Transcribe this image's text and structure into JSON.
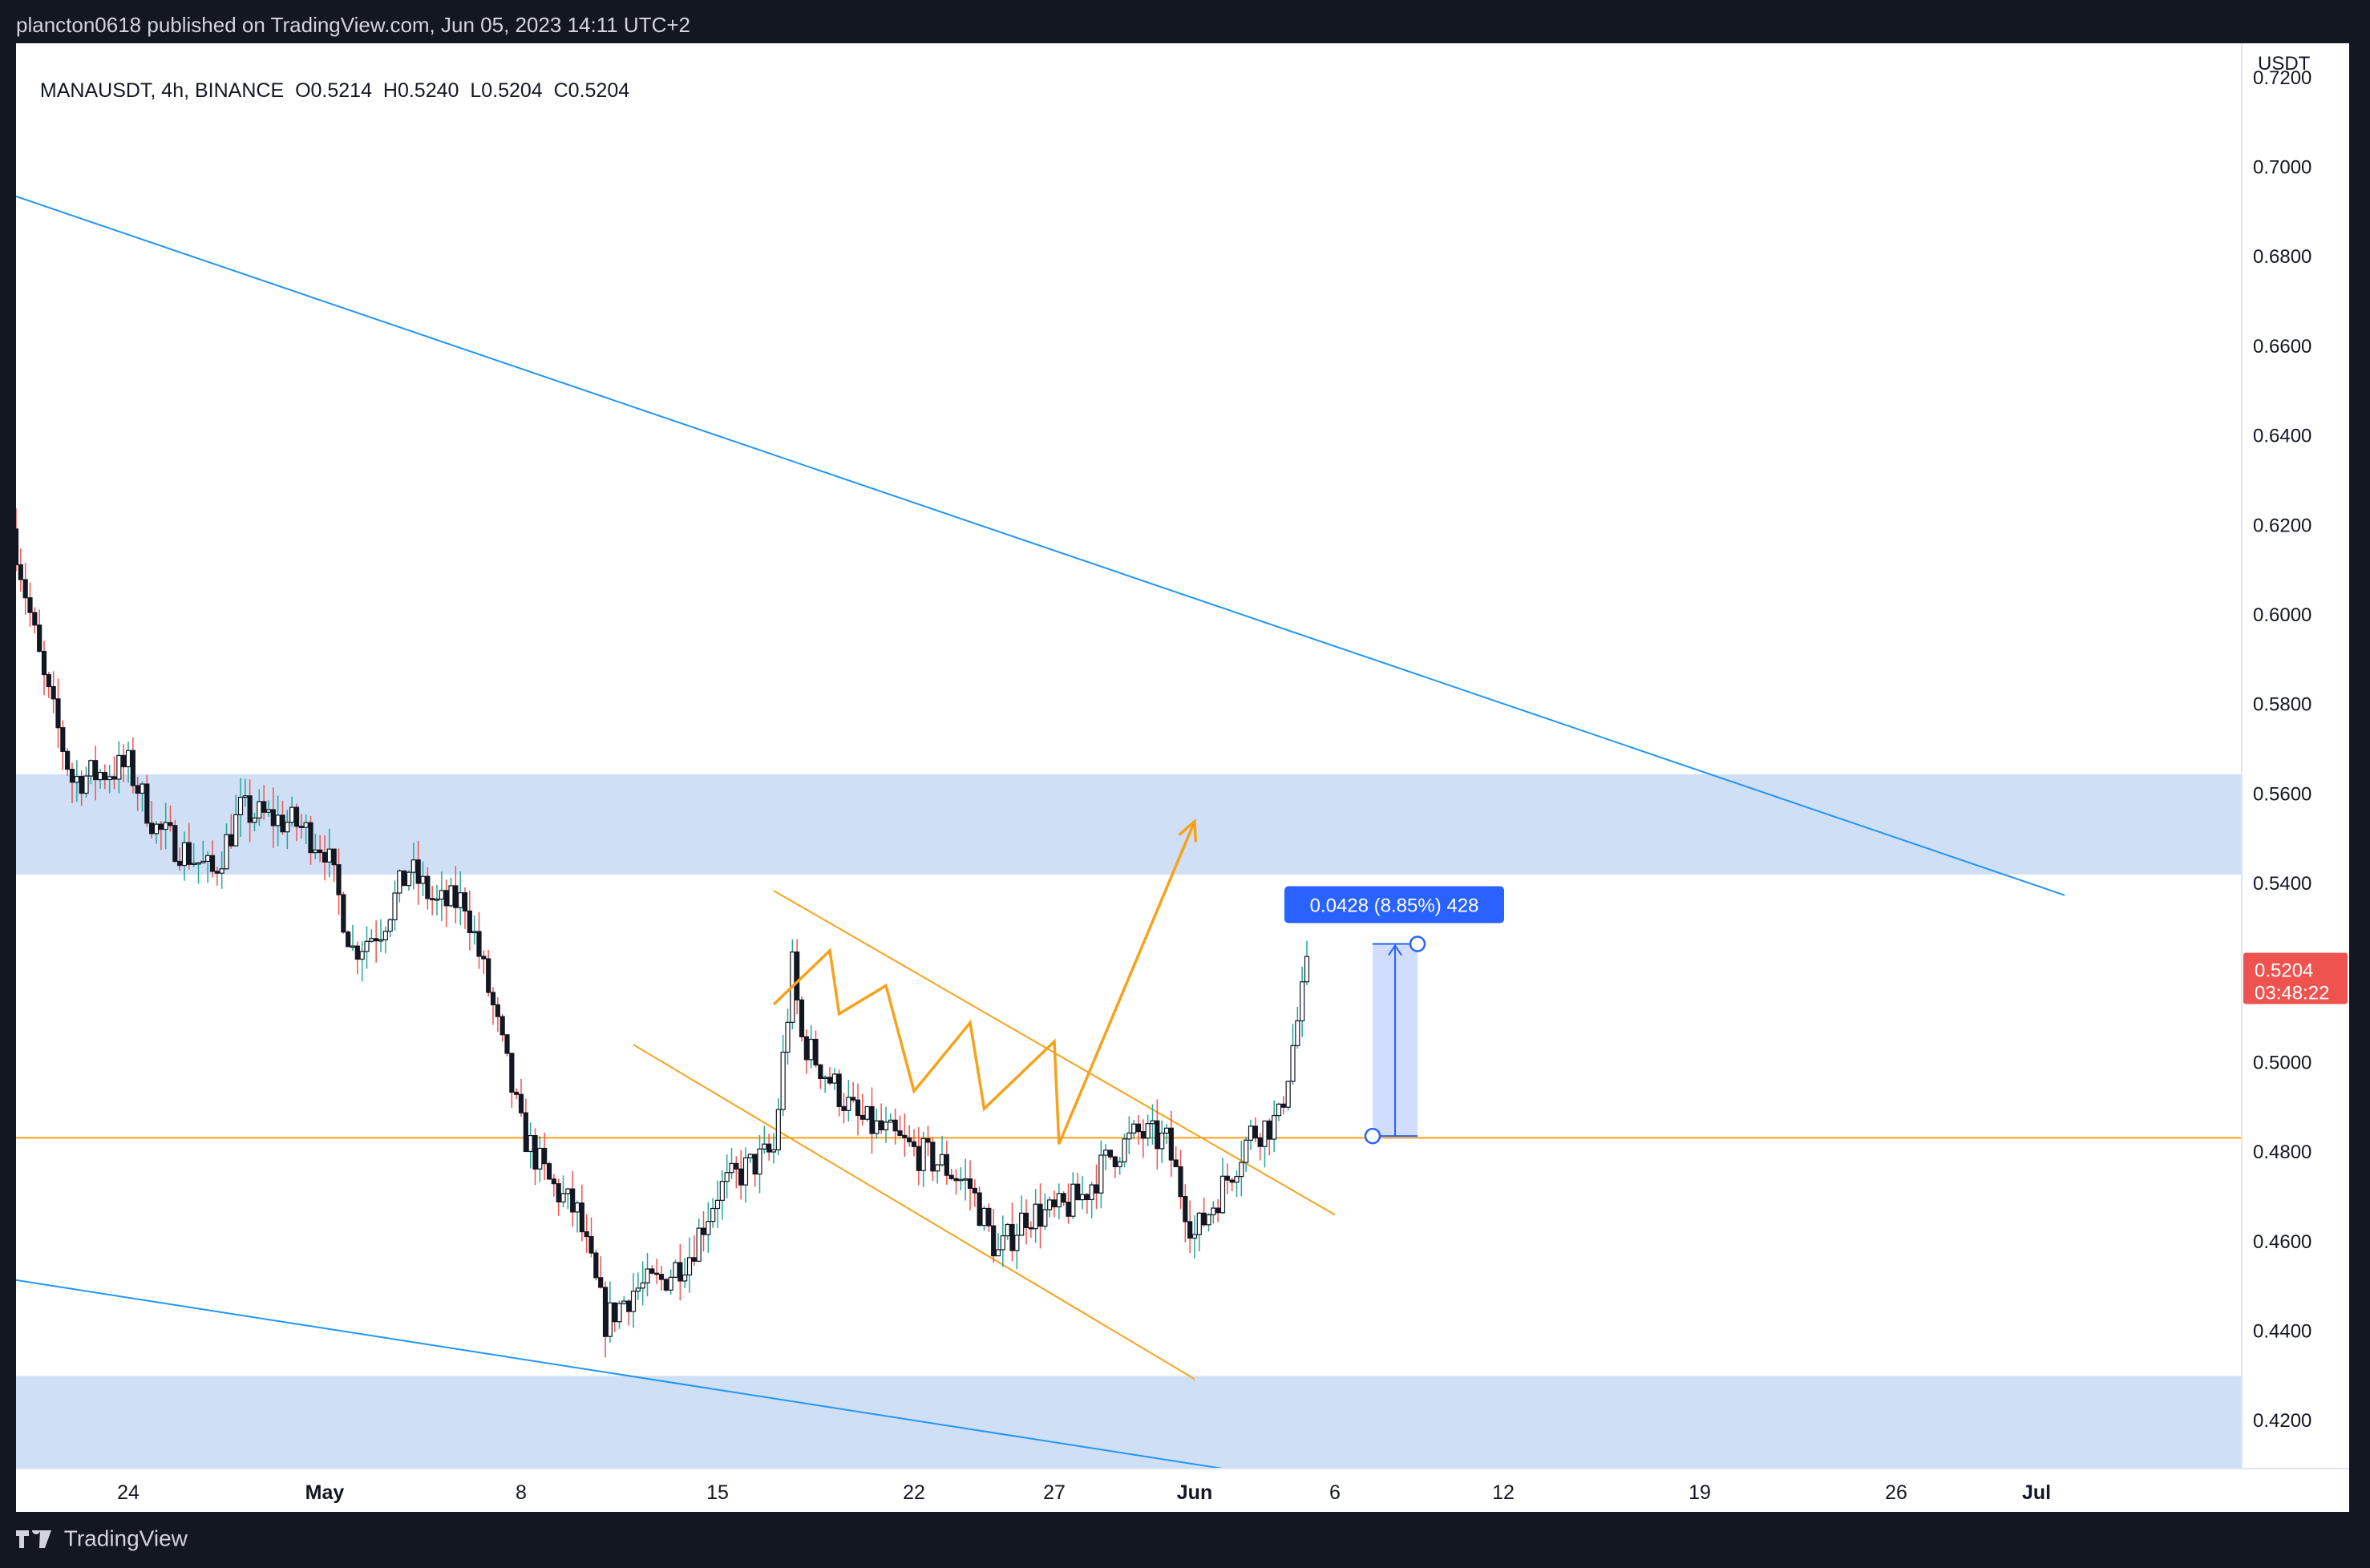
{
  "header": {
    "published": "plancton0618 published on TradingView.com, Jun 05, 2023 14:11 UTC+2"
  },
  "legend": {
    "symbol": "MANAUSDT, 4h, BINANCE",
    "open": "O0.5214",
    "high": "H0.5240",
    "low": "L0.5204",
    "close": "C0.5204"
  },
  "footer": {
    "brand": "TradingView"
  },
  "colors": {
    "up": "#26a69a",
    "down": "#ef5350",
    "candle_body": "#131722",
    "trendline": "#2196f3",
    "pattern": "#f7a21b",
    "zone": "#c9dbf5",
    "price_tag": "#ef5350",
    "measure": "#2962ff"
  },
  "chart_data": {
    "type": "candlestick",
    "symbol": "MANAUSDT",
    "interval": "4h",
    "exchange": "BINANCE",
    "y_axis": {
      "unit": "USDT",
      "ticks": [
        "0.7200",
        "0.7000",
        "0.6800",
        "0.6600",
        "0.6400",
        "0.6200",
        "0.6000",
        "0.5800",
        "0.5600",
        "0.5400",
        "0.5200",
        "0.5000",
        "0.4800",
        "0.4600",
        "0.4400",
        "0.4200"
      ],
      "range": [
        0.4091,
        0.7275
      ]
    },
    "x_axis": {
      "ticks": [
        "24",
        "May",
        "8",
        "15",
        "22",
        "27",
        "Jun",
        "6",
        "12",
        "19",
        "26",
        "Jul"
      ]
    },
    "last_price": {
      "value": "0.5204",
      "countdown": "03:48:22"
    },
    "measure_label": "0.0428 (8.85%) 428",
    "anchors": [
      {
        "date": "Apr 20",
        "close": 0.615
      },
      {
        "date": "Apr 21",
        "close": 0.585
      },
      {
        "date": "Apr 22",
        "close": 0.563
      },
      {
        "date": "Apr 24",
        "close": 0.566
      },
      {
        "date": "Apr 25",
        "close": 0.552
      },
      {
        "date": "Apr 27",
        "close": 0.542
      },
      {
        "date": "Apr 28",
        "close": 0.556
      },
      {
        "date": "Apr 30",
        "close": 0.553
      },
      {
        "date": "May 1",
        "close": 0.548
      },
      {
        "date": "May 2",
        "close": 0.525
      },
      {
        "date": "May 3",
        "close": 0.53
      },
      {
        "date": "May 4",
        "close": 0.543
      },
      {
        "date": "May 5",
        "close": 0.535
      },
      {
        "date": "May 6",
        "close": 0.536
      },
      {
        "date": "May 7",
        "close": 0.512
      },
      {
        "date": "May 8",
        "close": 0.485
      },
      {
        "date": "May 9",
        "close": 0.473
      },
      {
        "date": "May 10",
        "close": 0.466
      },
      {
        "date": "May 11",
        "close": 0.442
      },
      {
        "date": "May 12",
        "close": 0.449
      },
      {
        "date": "May 13",
        "close": 0.451
      },
      {
        "date": "May 14",
        "close": 0.457
      },
      {
        "date": "May 15",
        "close": 0.471
      },
      {
        "date": "May 16",
        "close": 0.476
      },
      {
        "date": "May 17",
        "close": 0.48
      },
      {
        "date": "May 17 16:00",
        "close": 0.521
      },
      {
        "date": "May 18",
        "close": 0.505
      },
      {
        "date": "May 19",
        "close": 0.496
      },
      {
        "date": "May 20",
        "close": 0.487
      },
      {
        "date": "May 21",
        "close": 0.484
      },
      {
        "date": "May 22",
        "close": 0.48
      },
      {
        "date": "May 23",
        "close": 0.477
      },
      {
        "date": "May 24",
        "close": 0.472
      },
      {
        "date": "May 25",
        "close": 0.457
      },
      {
        "date": "May 26",
        "close": 0.466
      },
      {
        "date": "May 27",
        "close": 0.466
      },
      {
        "date": "May 28",
        "close": 0.47
      },
      {
        "date": "May 29",
        "close": 0.479
      },
      {
        "date": "May 30",
        "close": 0.484
      },
      {
        "date": "May 31",
        "close": 0.482
      },
      {
        "date": "Jun 1",
        "close": 0.461
      },
      {
        "date": "Jun 2",
        "close": 0.472
      },
      {
        "date": "Jun 3",
        "close": 0.484
      },
      {
        "date": "Jun 4",
        "close": 0.487
      },
      {
        "date": "Jun 5",
        "close": 0.52
      }
    ],
    "zones": [
      {
        "name": "resistance zone",
        "from": 0.5418,
        "to": 0.5642
      },
      {
        "name": "support zone",
        "from": 0.4091,
        "to": 0.4298
      }
    ],
    "horizontal_line": 0.483,
    "trendlines": [
      {
        "name": "upper descending",
        "from": {
          "date": "Apr 20",
          "price": 0.6933
        },
        "to": {
          "date": "Jul 2",
          "price": 0.5372
        }
      },
      {
        "name": "lower descending",
        "from": {
          "date": "Apr 20",
          "price": 0.4512
        },
        "to": {
          "date": "Jun 2",
          "price": 0.4091
        }
      }
    ],
    "channel": [
      {
        "name": "channel upper",
        "from": {
          "date": "May 17",
          "price": 0.5382
        },
        "to": {
          "date": "Jun 6",
          "price": 0.4658
        }
      },
      {
        "name": "channel lower",
        "from": {
          "date": "May 12",
          "price": 0.5038
        },
        "to": {
          "date": "Jun 1",
          "price": 0.4291
        }
      }
    ],
    "projection_path": [
      {
        "date": "May 17",
        "price": 0.5128
      },
      {
        "date": "May 19",
        "price": 0.5248
      },
      {
        "date": "May 19 08:00",
        "price": 0.5107
      },
      {
        "date": "May 21",
        "price": 0.517
      },
      {
        "date": "May 22",
        "price": 0.4934
      },
      {
        "date": "May 24",
        "price": 0.5087
      },
      {
        "date": "May 24 12:00",
        "price": 0.4895
      },
      {
        "date": "May 27",
        "price": 0.5045
      },
      {
        "date": "May 27 04:00",
        "price": 0.4816
      },
      {
        "date": "Jun 1",
        "price": 0.5537
      }
    ],
    "measure": {
      "from": 0.4834,
      "to": 0.5263
    }
  }
}
